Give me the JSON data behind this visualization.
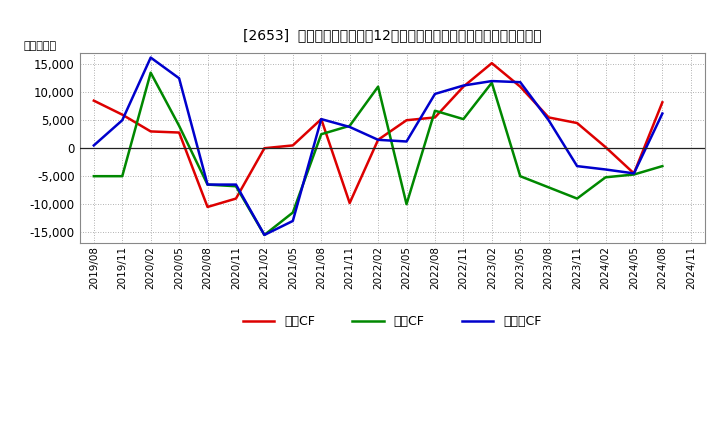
{
  "title": "[2653]  キャッシュフローの12か月移動合計の対前年同期増減額の推移",
  "ylabel": "（百万円）",
  "x_labels": [
    "2019/08",
    "2019/11",
    "2020/02",
    "2020/05",
    "2020/08",
    "2020/11",
    "2021/02",
    "2021/05",
    "2021/08",
    "2021/11",
    "2022/02",
    "2022/05",
    "2022/08",
    "2022/11",
    "2023/02",
    "2023/05",
    "2023/08",
    "2023/11",
    "2024/02",
    "2024/05",
    "2024/08",
    "2024/11"
  ],
  "operating_cf": [
    8500,
    6000,
    3000,
    2800,
    -10500,
    -9000,
    0,
    500,
    5200,
    -9800,
    1500,
    5000,
    5500,
    11000,
    15200,
    11000,
    5500,
    4500,
    200,
    -4500,
    8200,
    null
  ],
  "investing_cf": [
    -5000,
    -5000,
    13500,
    4000,
    -6500,
    -6800,
    -15500,
    -11500,
    2500,
    4000,
    11000,
    -10000,
    6700,
    5200,
    11700,
    -5000,
    -7000,
    -9000,
    -5200,
    -4700,
    -3200,
    null
  ],
  "free_cf": [
    500,
    5000,
    16200,
    12500,
    -6500,
    -6500,
    -15500,
    -13000,
    5200,
    3800,
    1500,
    1200,
    9700,
    11200,
    12000,
    11800,
    5000,
    -3200,
    -3800,
    -4500,
    6200,
    null
  ],
  "operating_color": "#dd0000",
  "investing_color": "#008800",
  "free_color": "#0000cc",
  "ylim": [
    -17000,
    17000
  ],
  "yticks": [
    -15000,
    -10000,
    -5000,
    0,
    5000,
    10000,
    15000
  ],
  "bg_color": "#ffffff",
  "plot_bg_color": "#ffffff",
  "grid_color": "#999999",
  "legend_labels": [
    "営業CF",
    "投資CF",
    "フリーCF"
  ]
}
